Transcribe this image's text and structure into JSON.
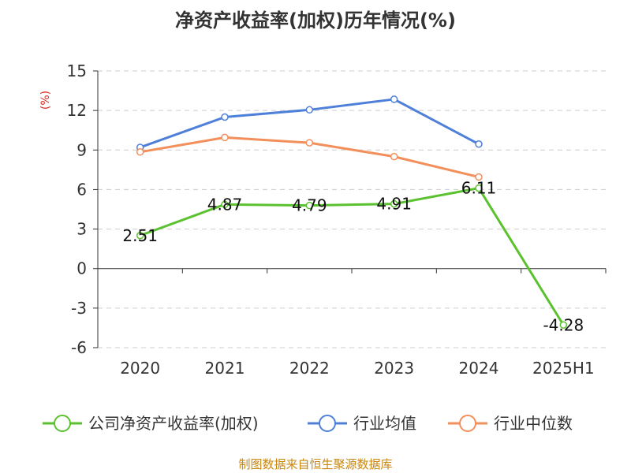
{
  "title": "净资产收益率(加权)历年情况(%)",
  "source": "制图数据来自恒生聚源数据库",
  "colors": {
    "company": "#5bc22f",
    "industry_avg": "#4f80d9",
    "industry_median": "#f28f5a",
    "unit": "#d9281e",
    "source": "#c8860e"
  },
  "chart_data": {
    "type": "line",
    "title": "净资产收益率(加权)历年情况(%)",
    "ylabel": "(%)",
    "xlabel": "",
    "categories": [
      "2020",
      "2021",
      "2022",
      "2023",
      "2024",
      "2025H1"
    ],
    "yticks": [
      "15",
      "12",
      "9",
      "6",
      "3",
      "0",
      "-3",
      "-6"
    ],
    "ylim": [
      -6,
      15
    ],
    "grid": true,
    "legend_position": "bottom",
    "series": [
      {
        "name": "公司净资产收益率(加权)",
        "values": [
          2.51,
          4.87,
          4.79,
          4.91,
          6.11,
          -4.28
        ],
        "labels": [
          "2.51",
          "4.87",
          "4.79",
          "4.91",
          "6.11",
          "-4.28"
        ]
      },
      {
        "name": "行业均值",
        "values": [
          9.2,
          11.5,
          12.05,
          12.85,
          9.45,
          null
        ]
      },
      {
        "name": "行业中位数",
        "values": [
          8.85,
          9.95,
          9.55,
          8.5,
          6.95,
          null
        ]
      }
    ]
  }
}
